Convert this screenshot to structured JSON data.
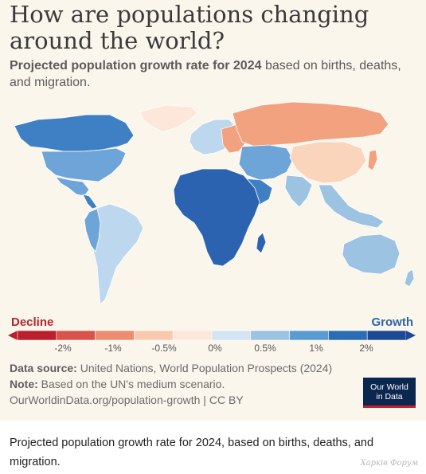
{
  "header": {
    "title": "How are populations changing around the world?",
    "subtitle_bold": "Projected population growth rate for 2024",
    "subtitle_rest": " based on births, deaths, and migration."
  },
  "legend": {
    "decline_label": "Decline",
    "growth_label": "Growth",
    "ticks": [
      "-2%",
      "-1%",
      "-0.5%",
      "0%",
      "0.5%",
      "1%",
      "2%"
    ],
    "colors": [
      "#b91f2c",
      "#d8544b",
      "#ec8c70",
      "#f8c9ad",
      "#fde7da",
      "#d3e4f2",
      "#9cc3e1",
      "#5a9bd2",
      "#2c6cb5",
      "#1a4a94"
    ]
  },
  "map_colors": {
    "africa": "#2b63b0",
    "north_america": "#3f80c4",
    "usa": "#6ea5d8",
    "mexico": "#6ea5d8",
    "central_america": "#3f80c4",
    "south_america": "#bcd7ee",
    "south_america_west": "#6ea5d8",
    "greenland": "#fde7da",
    "europe": "#bcd7ee",
    "eastern_europe": "#f3a27f",
    "russia": "#f3a27f",
    "china": "#fbd4bc",
    "middle_east": "#6ea5d8",
    "arabia": "#3f80c4",
    "south_asia": "#9cc3e1",
    "southeast_asia": "#9cc3e1",
    "japan": "#f3a27f",
    "australia": "#9cc3e1",
    "ocean": "#faf6ec"
  },
  "footer": {
    "source_label": "Data source:",
    "source_text": " United Nations, World Population Prospects (2024)",
    "note_label": "Note:",
    "note_text": " Based on the UN's medium scenario.",
    "url": "OurWorldinData.org/population-growth | CC BY"
  },
  "logo": {
    "line1": "Our World",
    "line2": "in Data"
  },
  "caption": "Projected population growth rate for 2024, based on births, deaths, and migration.",
  "watermark": "Харків Форум"
}
